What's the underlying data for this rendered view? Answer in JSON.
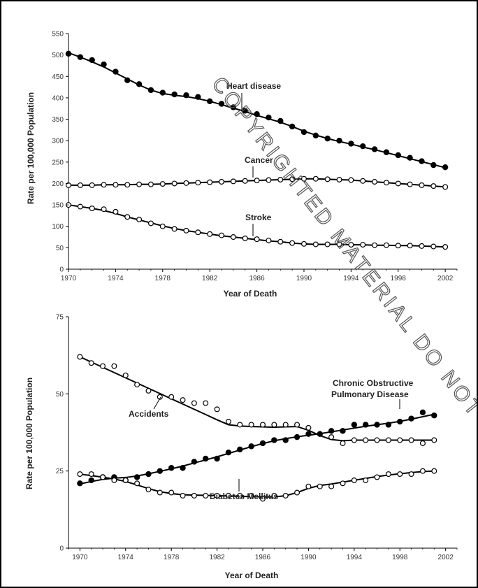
{
  "watermark": "COPYRIGHTED MATERIAL DO NOT",
  "colors": {
    "ink": "#000000",
    "open_marker_fill": "#ffffff"
  },
  "chart_data": [
    {
      "type": "line",
      "title": "",
      "xlabel": "Year of Death",
      "ylabel": "Rate per 100,000 Population",
      "xlim": [
        1970,
        2003
      ],
      "ylim": [
        0,
        550
      ],
      "x_ticks": [
        1970,
        1974,
        1978,
        1982,
        1986,
        1990,
        1994,
        1998,
        2002
      ],
      "y_ticks": [
        0,
        50,
        100,
        150,
        200,
        250,
        300,
        350,
        400,
        450,
        500,
        550
      ],
      "legend": "none",
      "grid": false,
      "x": [
        1970,
        1971,
        1972,
        1973,
        1974,
        1975,
        1976,
        1977,
        1978,
        1979,
        1980,
        1981,
        1982,
        1983,
        1984,
        1985,
        1986,
        1987,
        1988,
        1989,
        1990,
        1991,
        1992,
        1993,
        1994,
        1995,
        1996,
        1997,
        1998,
        1999,
        2000,
        2001,
        2002
      ],
      "series": [
        {
          "name": "Heart disease",
          "marker": "filled",
          "values": [
            503,
            495,
            488,
            478,
            461,
            441,
            432,
            418,
            412,
            408,
            406,
            402,
            392,
            386,
            378,
            370,
            362,
            354,
            346,
            333,
            320,
            312,
            305,
            300,
            293,
            287,
            280,
            273,
            266,
            260,
            252,
            243,
            238
          ],
          "fit": [
            505,
            495,
            484,
            472,
            458,
            444,
            430,
            418,
            410,
            406,
            403,
            398,
            392,
            384,
            376,
            368,
            359,
            351,
            343,
            333,
            322,
            313,
            305,
            298,
            292,
            285,
            279,
            272,
            265,
            258,
            251,
            244,
            237
          ]
        },
        {
          "name": "Cancer",
          "marker": "open",
          "values": [
            196,
            196,
            196,
            197,
            197,
            197,
            198,
            198,
            199,
            200,
            201,
            202,
            203,
            204,
            205,
            206,
            207,
            208,
            209,
            210,
            211,
            211,
            210,
            209,
            208,
            206,
            204,
            202,
            200,
            198,
            196,
            194,
            192
          ],
          "fit": [
            196,
            196,
            196,
            197,
            197,
            197,
            198,
            198,
            199,
            200,
            201,
            202,
            203,
            204,
            205,
            206,
            207,
            208,
            209,
            210,
            211,
            211,
            210,
            209,
            208,
            206,
            204,
            202,
            200,
            198,
            196,
            194,
            192
          ]
        },
        {
          "name": "Stroke",
          "marker": "open",
          "values": [
            150,
            146,
            142,
            140,
            134,
            122,
            116,
            107,
            100,
            94,
            90,
            86,
            82,
            79,
            75,
            72,
            70,
            67,
            64,
            61,
            59,
            58,
            58,
            58,
            57,
            57,
            56,
            56,
            55,
            55,
            54,
            53,
            52
          ],
          "fit": [
            150,
            146,
            142,
            137,
            130,
            122,
            115,
            108,
            101,
            95,
            90,
            86,
            82,
            78,
            75,
            72,
            69,
            66,
            64,
            61,
            59,
            58,
            58,
            58,
            57,
            57,
            56,
            56,
            55,
            55,
            54,
            53,
            52
          ]
        }
      ],
      "annotations": [
        {
          "text": "Heart disease",
          "series": "Heart disease"
        },
        {
          "text": "Cancer",
          "series": "Cancer"
        },
        {
          "text": "Stroke",
          "series": "Stroke"
        }
      ]
    },
    {
      "type": "line",
      "title": "",
      "xlabel": "Year of Death",
      "ylabel": "Rate per 100,000 Population",
      "xlim": [
        1969,
        2003
      ],
      "ylim": [
        0,
        75
      ],
      "x_ticks": [
        1970,
        1974,
        1978,
        1982,
        1986,
        1990,
        1994,
        1998,
        2002
      ],
      "y_ticks": [
        0,
        25,
        50,
        75
      ],
      "legend": "none",
      "grid": false,
      "x": [
        1970,
        1971,
        1972,
        1973,
        1974,
        1975,
        1976,
        1977,
        1978,
        1979,
        1980,
        1981,
        1982,
        1983,
        1984,
        1985,
        1986,
        1987,
        1988,
        1989,
        1990,
        1991,
        1992,
        1993,
        1994,
        1995,
        1996,
        1997,
        1998,
        1999,
        2000,
        2001
      ],
      "series": [
        {
          "name": "Accidents",
          "marker": "open",
          "values": [
            62,
            60,
            59,
            59,
            56,
            53,
            51,
            49,
            49,
            48,
            47,
            47,
            45,
            41,
            40,
            40,
            40,
            40,
            40,
            40,
            39,
            37,
            36,
            34,
            35,
            35,
            35,
            35,
            35,
            35,
            34,
            35
          ],
          "fit": [
            62,
            60.3,
            58.6,
            56.9,
            55.2,
            53.5,
            51.8,
            50.1,
            48.4,
            46.7,
            45,
            43.3,
            41.6,
            40,
            39.6,
            39.4,
            39.3,
            39.2,
            39.3,
            39.4,
            38.2,
            36.5,
            35.2,
            34.8,
            35,
            35,
            35,
            35,
            35,
            35,
            35,
            35
          ]
        },
        {
          "name": "Chronic Obstructive Pulmonary Disease",
          "marker": "filled",
          "values": [
            21,
            22,
            23,
            23,
            22,
            23,
            24,
            25,
            26,
            26,
            28,
            29,
            29,
            31,
            32,
            33,
            34,
            35,
            35,
            36,
            37,
            37,
            38,
            38,
            40,
            40,
            40,
            40,
            41,
            42,
            44,
            43
          ],
          "fit": [
            20.8,
            21.6,
            22.3,
            22.7,
            22.9,
            23.4,
            24.1,
            24.9,
            25.7,
            26.6,
            27.6,
            28.6,
            29.6,
            30.7,
            31.8,
            32.9,
            33.9,
            34.8,
            35.5,
            36.1,
            36.6,
            37.1,
            37.7,
            38.3,
            38.9,
            39.5,
            40,
            40.5,
            41.1,
            41.8,
            42.6,
            43.4
          ]
        },
        {
          "name": "Diabetes Mellitus",
          "marker": "open",
          "values": [
            24,
            24,
            23,
            22,
            22,
            21,
            19,
            18,
            18,
            17,
            17,
            17,
            17,
            17,
            17,
            17,
            16,
            17,
            17,
            18,
            20,
            20,
            20,
            21,
            22,
            22,
            23,
            24,
            24,
            24,
            25,
            25
          ],
          "fit": [
            24,
            23.5,
            23,
            22.4,
            21.6,
            20.5,
            19.3,
            18.3,
            17.7,
            17.3,
            17.2,
            17.1,
            17,
            16.9,
            16.8,
            16.7,
            16.6,
            16.6,
            17,
            18,
            19.4,
            20.3,
            20.8,
            21.4,
            22,
            22.6,
            23.2,
            23.7,
            24.1,
            24.5,
            24.8,
            25
          ]
        }
      ],
      "annotations": [
        {
          "text": "Accidents",
          "series": "Accidents"
        },
        {
          "text": "Chronic Obstructive",
          "series": "Chronic Obstructive Pulmonary Disease"
        },
        {
          "text": "Pulmonary Disease",
          "series": "Chronic Obstructive Pulmonary Disease"
        },
        {
          "text": "Diabetes Mellitus",
          "series": "Diabetes Mellitus"
        }
      ]
    }
  ]
}
